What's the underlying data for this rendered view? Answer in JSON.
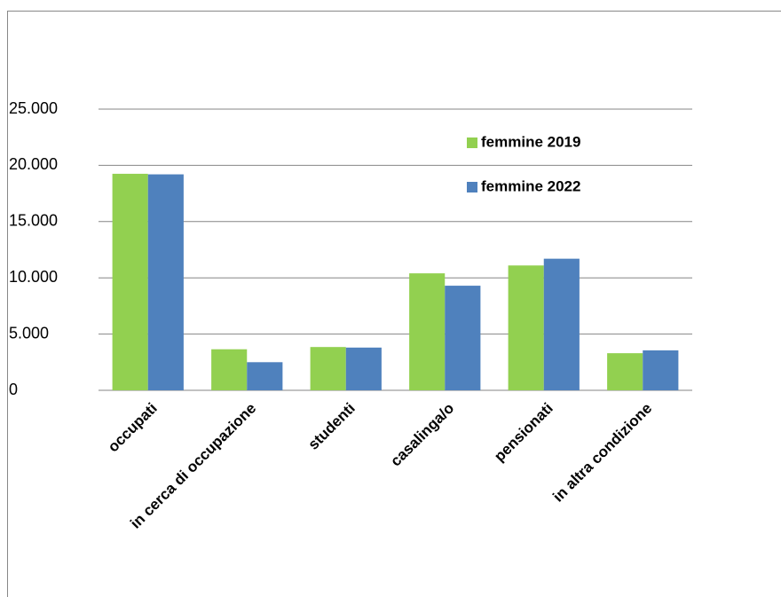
{
  "chart_data": {
    "type": "bar",
    "categories": [
      "occupati",
      "in cerca di occupazione",
      "studenti",
      "casalinga/o",
      "pensionati",
      "in altra condizione"
    ],
    "series": [
      {
        "name": "femmine 2019",
        "color": "#92d050",
        "values": [
          19250,
          3650,
          3850,
          10400,
          11100,
          3300
        ]
      },
      {
        "name": "femmine 2022",
        "color": "#4f81bd",
        "values": [
          19200,
          2500,
          3800,
          9300,
          11700,
          3550
        ]
      }
    ],
    "ylim": [
      0,
      25000
    ],
    "yticks": [
      0,
      {
        "value": 5000,
        "label": "5.000"
      },
      {
        "value": 10000,
        "label": "10.000"
      },
      {
        "value": 15000,
        "label": "15.000"
      },
      {
        "value": 20000,
        "label": "20.000"
      },
      {
        "value": 25000,
        "label": "25.000"
      }
    ],
    "grid": true
  }
}
